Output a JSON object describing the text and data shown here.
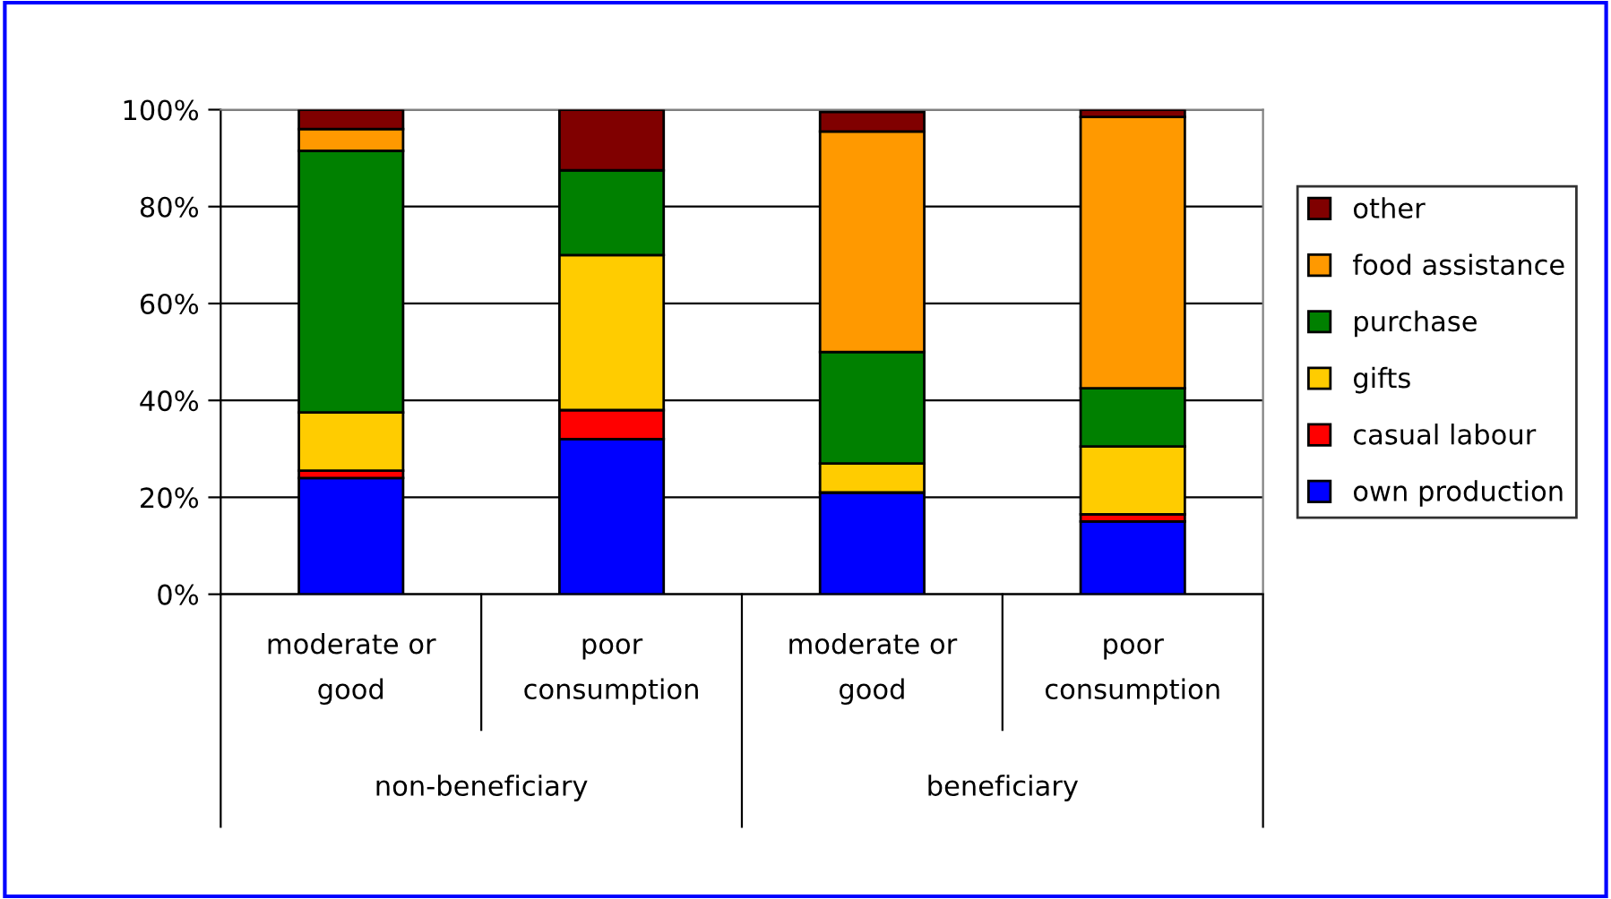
{
  "chart_data": {
    "type": "bar",
    "stacked": true,
    "categories": [
      "moderate or\ngood",
      "poor\nconsumption",
      "moderate or\ngood",
      "poor\nconsumption"
    ],
    "annotations": [
      "non-beneficiary",
      "beneficiary"
    ],
    "series": [
      {
        "name": "own production",
        "color": "#0000ff",
        "values": [
          24,
          32,
          21,
          15
        ]
      },
      {
        "name": "casual labour",
        "color": "#ff0000",
        "values": [
          1.5,
          6,
          null,
          1.5
        ]
      },
      {
        "name": "gifts",
        "color": "#ffcc00",
        "values": [
          12,
          32,
          6,
          14
        ]
      },
      {
        "name": "purchase",
        "color": "#008000",
        "values": [
          54,
          17.5,
          23,
          12
        ]
      },
      {
        "name": "food assistance",
        "color": "#ff9900",
        "values": [
          4.5,
          0,
          45.5,
          56
        ]
      },
      {
        "name": "other",
        "color": "#800000",
        "values": [
          4,
          12.5,
          4,
          1.5
        ]
      }
    ],
    "ylim": [
      0,
      100
    ],
    "yticks": [
      {
        "value": 0,
        "label": "0%"
      },
      {
        "value": 20,
        "label": "20%"
      },
      {
        "value": 40,
        "label": "40%"
      },
      {
        "value": 60,
        "label": "60%"
      },
      {
        "value": 80,
        "label": "80%"
      },
      {
        "value": 100,
        "label": "100%"
      }
    ],
    "grid": "y",
    "legend": "right"
  }
}
